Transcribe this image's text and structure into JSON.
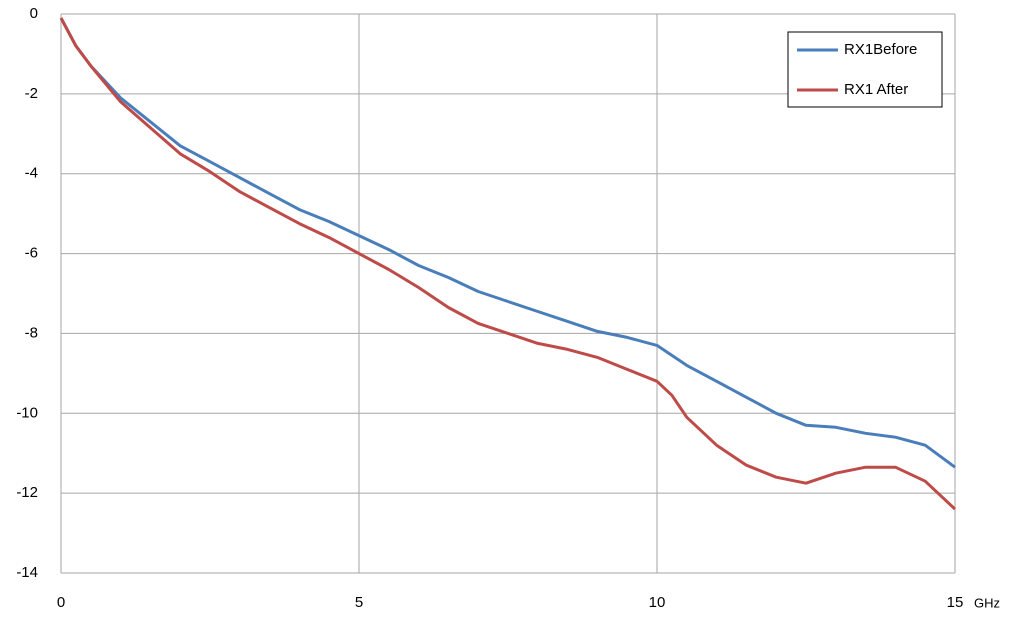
{
  "chart_data": {
    "type": "line",
    "x_label": "GHz",
    "x": [
      0,
      0.25,
      0.5,
      1,
      1.5,
      2,
      2.5,
      3,
      3.5,
      4,
      4.5,
      5,
      5.5,
      6,
      6.5,
      7,
      7.5,
      8,
      8.5,
      9,
      9.5,
      10,
      10.25,
      10.5,
      11,
      11.5,
      12,
      12.5,
      13,
      13.5,
      14,
      14.5,
      15
    ],
    "series": [
      {
        "name": "RX1Before",
        "color": "#4a7ebb",
        "values": [
          -0.1,
          -0.8,
          -1.3,
          -2.1,
          -2.7,
          -3.3,
          -3.7,
          -4.1,
          -4.5,
          -4.9,
          -5.2,
          -5.55,
          -5.9,
          -6.3,
          -6.6,
          -6.95,
          -7.2,
          -7.45,
          -7.7,
          -7.95,
          -8.1,
          -8.3,
          -8.55,
          -8.8,
          -9.2,
          -9.6,
          -10.0,
          -10.3,
          -10.35,
          -10.5,
          -10.6,
          -10.8,
          -11.35
        ]
      },
      {
        "name": "RX1 After",
        "color": "#be4b48",
        "values": [
          -0.1,
          -0.8,
          -1.3,
          -2.2,
          -2.85,
          -3.5,
          -3.95,
          -4.45,
          -4.85,
          -5.25,
          -5.6,
          -6.0,
          -6.4,
          -6.85,
          -7.35,
          -7.75,
          -8.0,
          -8.25,
          -8.4,
          -8.6,
          -8.9,
          -9.2,
          -9.55,
          -10.1,
          -10.8,
          -11.3,
          -11.6,
          -11.75,
          -11.5,
          -11.35,
          -11.35,
          -11.7,
          -12.4
        ]
      }
    ],
    "xlim": [
      0,
      15
    ],
    "xticks": [
      0,
      5,
      10,
      15
    ],
    "ylim": [
      -14,
      0
    ],
    "yticks": [
      0,
      -2,
      -4,
      -6,
      -8,
      -10,
      -12,
      -14
    ],
    "grid": true,
    "legend": "top-right"
  }
}
